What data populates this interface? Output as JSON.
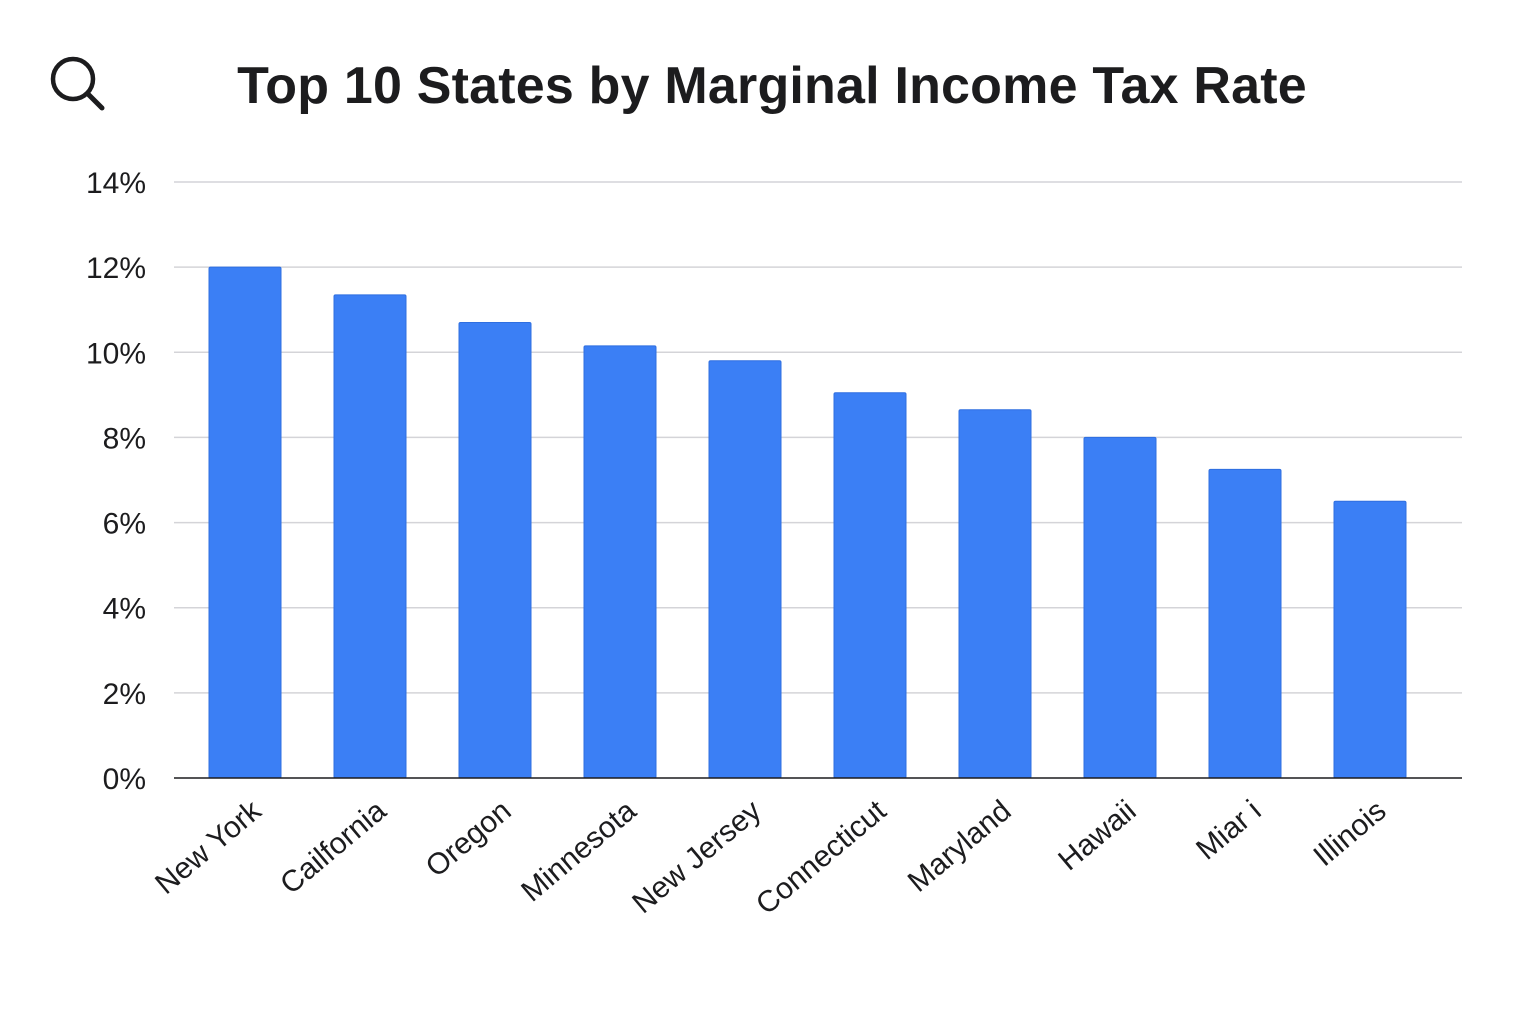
{
  "search": {
    "icon": "search-icon"
  },
  "chart_data": {
    "type": "bar",
    "title": "Top 10 States by Marginal Income Tax Rate",
    "xlabel": "",
    "ylabel": "",
    "categories": [
      "New York",
      "Cailfornia",
      "Oregon",
      "Minnesota",
      "New Jersey",
      "Connecticut",
      "Maryland",
      "Hawaii",
      "Miar i",
      "Illinois"
    ],
    "values": [
      12.0,
      11.35,
      10.7,
      10.15,
      9.8,
      9.05,
      8.65,
      8.0,
      7.25,
      6.5
    ],
    "ylim": [
      0,
      14
    ],
    "yticks": [
      0,
      2,
      4,
      6,
      8,
      10,
      12,
      14
    ],
    "ytick_labels": [
      "0%",
      "2%",
      "4%",
      "6%",
      "8%",
      "10%",
      "12%",
      "14%"
    ],
    "grid": true,
    "legend": "none",
    "bar_color": "#3b7ff5"
  }
}
